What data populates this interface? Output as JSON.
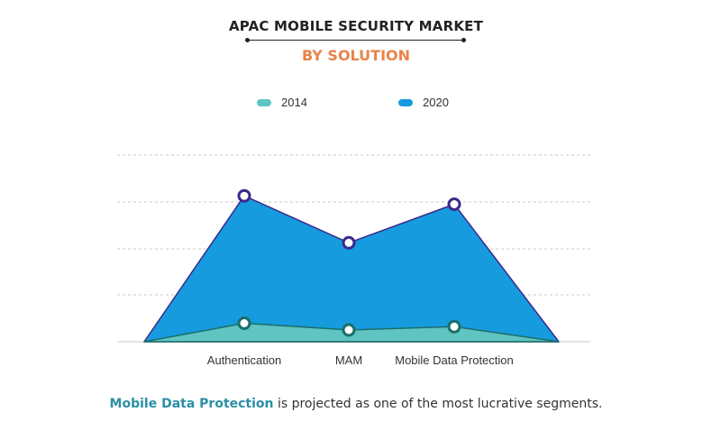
{
  "title": "APAC MOBILE SECURITY MARKET",
  "subtitle": "BY SOLUTION",
  "colors": {
    "title": "#222222",
    "subtitle": "#e8834b",
    "series_2014_fill": "#5fc4c2",
    "series_2014_stroke": "#1a6f6a",
    "series_2020_fill": "#169bde",
    "series_2020_stroke": "#3a2a8c",
    "grid": "#c8c8c8",
    "highlight": "#2b8fa6"
  },
  "caption": {
    "highlight": "Mobile Data Protection",
    "rest": " is projected as one of the most lucrative segments."
  },
  "chart_data": {
    "type": "area",
    "categories": [
      "Authentication",
      "MAM",
      "Mobile Data Protection"
    ],
    "series": [
      {
        "name": "2014",
        "values": [
          0.11,
          0.07,
          0.09
        ]
      },
      {
        "name": "2020",
        "values": [
          0.87,
          0.59,
          0.82
        ]
      }
    ],
    "ylim": [
      0,
      1
    ],
    "grid": true,
    "legend": "top-center",
    "xlabel": "",
    "ylabel": ""
  }
}
